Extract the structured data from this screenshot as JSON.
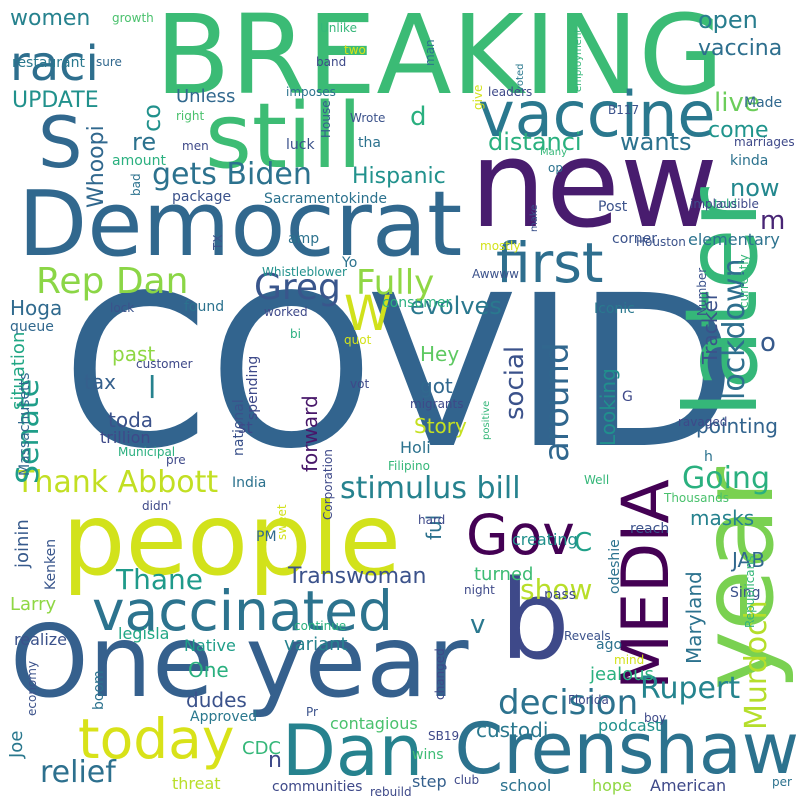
{
  "words": [
    {
      "text": "COVID",
      "color": "#32648e"
    },
    {
      "text": "BREAKING",
      "color": "#3bbb75"
    },
    {
      "text": "new",
      "color": "#481c6e"
    },
    {
      "text": "One year",
      "color": "#35608d"
    },
    {
      "text": "people",
      "color": "#d2e21b"
    },
    {
      "text": "Democrat",
      "color": "#31688e"
    },
    {
      "text": "still",
      "color": "#3dbc74"
    },
    {
      "text": "b",
      "color": "#3e4989"
    },
    {
      "text": "S",
      "color": "#31688e"
    },
    {
      "text": "year",
      "color": "#7ad151"
    },
    {
      "text": "later",
      "color": "#35b779"
    },
    {
      "text": "Crenshaw",
      "color": "#2c728e"
    },
    {
      "text": "MEDIA",
      "color": "#440154"
    },
    {
      "text": "vaccine",
      "color": "#2a788e"
    },
    {
      "text": "Dan",
      "color": "#26828e"
    },
    {
      "text": "vaccinated",
      "color": "#2c738e"
    },
    {
      "text": "today",
      "color": "#d8e219"
    },
    {
      "text": "first",
      "color": "#2e6e8e"
    },
    {
      "text": "Gov",
      "color": "#440154"
    },
    {
      "text": "raci",
      "color": "#2e6f8e"
    },
    {
      "text": "W",
      "color": "#d0e11c"
    },
    {
      "text": "Rep Dan",
      "color": "#8bd646"
    },
    {
      "text": "Greg",
      "color": "#39568c"
    },
    {
      "text": "Thank Abbott",
      "color": "#c2df23"
    },
    {
      "text": "gets Biden",
      "color": "#2c728e"
    },
    {
      "text": "Fully",
      "color": "#8fd744"
    },
    {
      "text": "around",
      "color": "#31678e"
    },
    {
      "text": "stimulus bill",
      "color": "#26828e"
    },
    {
      "text": "decision",
      "color": "#2c728e"
    },
    {
      "text": "relief",
      "color": "#2d708e"
    },
    {
      "text": "Rupert",
      "color": "#25848e"
    },
    {
      "text": "Murdoch",
      "color": "#b5de2b"
    },
    {
      "text": "Going",
      "color": "#2ab07f"
    },
    {
      "text": "lockdown",
      "color": "#2e6f8e"
    },
    {
      "text": "Senate",
      "color": "#1f9e89"
    },
    {
      "text": "Thane",
      "color": "#1f9a8a"
    },
    {
      "text": "Transwoman",
      "color": "#3b528b"
    },
    {
      "text": "show",
      "color": "#b8de29"
    },
    {
      "text": "evolves",
      "color": "#2a788e"
    },
    {
      "text": "Hispanic",
      "color": "#21918c"
    },
    {
      "text": "Whoopi",
      "color": "#31688e"
    },
    {
      "text": "social",
      "color": "#3b528b"
    },
    {
      "text": "distanci",
      "color": "#2ab07f"
    },
    {
      "text": "wants",
      "color": "#2c728e"
    },
    {
      "text": "now",
      "color": "#23888e"
    },
    {
      "text": "come",
      "color": "#1f948c"
    },
    {
      "text": "open",
      "color": "#287d8e"
    },
    {
      "text": "vaccina",
      "color": "#2e6f8e"
    },
    {
      "text": "live",
      "color": "#6ccd5a"
    },
    {
      "text": "co",
      "color": "#21918c"
    },
    {
      "text": "re",
      "color": "#2c728e"
    },
    {
      "text": "l",
      "color": "#26828e"
    },
    {
      "text": "d",
      "color": "#2ab07f"
    },
    {
      "text": "m",
      "color": "#482575"
    },
    {
      "text": "o",
      "color": "#375a8c"
    },
    {
      "text": "C",
      "color": "#1fa088"
    },
    {
      "text": "v",
      "color": "#2a788e"
    },
    {
      "text": "n",
      "color": "#3e4989"
    },
    {
      "text": "women",
      "color": "#26828e"
    },
    {
      "text": "UPDATE",
      "color": "#21918c"
    },
    {
      "text": "Unless",
      "color": "#31688e"
    },
    {
      "text": "restaurant",
      "color": "#2a788e"
    },
    {
      "text": "situation",
      "color": "#22a785"
    },
    {
      "text": "Hoga",
      "color": "#306a8e"
    },
    {
      "text": "past",
      "color": "#8fd744"
    },
    {
      "text": "tax",
      "color": "#35608d"
    },
    {
      "text": "toda",
      "color": "#3b528b"
    },
    {
      "text": "trillion",
      "color": "#3e4989"
    },
    {
      "text": "Hey",
      "color": "#5ec962"
    },
    {
      "text": "got",
      "color": "#31688e"
    },
    {
      "text": "Story",
      "color": "#c5e021"
    },
    {
      "text": "Holi",
      "color": "#2c728e"
    },
    {
      "text": "Looking",
      "color": "#218f8d"
    },
    {
      "text": "Tracker",
      "color": "#3b528b"
    },
    {
      "text": "pointing",
      "color": "#32648e"
    },
    {
      "text": "forward",
      "color": "#48186a"
    },
    {
      "text": "ful",
      "color": "#2c728e"
    },
    {
      "text": "masks",
      "color": "#26828e"
    },
    {
      "text": "JAB",
      "color": "#31688e"
    },
    {
      "text": "Maryland",
      "color": "#2c728e"
    },
    {
      "text": "turned",
      "color": "#3dbc74"
    },
    {
      "text": "Larry",
      "color": "#8fd744"
    },
    {
      "text": "joinin",
      "color": "#375a8c"
    },
    {
      "text": "One",
      "color": "#2ab07f"
    },
    {
      "text": "dudes",
      "color": "#3b528b"
    },
    {
      "text": "variant",
      "color": "#26828e"
    },
    {
      "text": "Native",
      "color": "#1f9e89"
    },
    {
      "text": "contagious",
      "color": "#4ac16d"
    },
    {
      "text": "custodi",
      "color": "#2a788e"
    },
    {
      "text": "jealous",
      "color": "#2ab07f"
    },
    {
      "text": "podcast",
      "color": "#21918c"
    },
    {
      "text": "CDC",
      "color": "#35b779"
    },
    {
      "text": "Joe",
      "color": "#2a788e"
    },
    {
      "text": "Approved",
      "color": "#2a788e"
    },
    {
      "text": "boom",
      "color": "#2c728e"
    },
    {
      "text": "realize",
      "color": "#3b528b"
    },
    {
      "text": "legisla",
      "color": "#22a785"
    },
    {
      "text": "threat",
      "color": "#b8de29"
    },
    {
      "text": "communities",
      "color": "#3e4989"
    },
    {
      "text": "wins",
      "color": "#3dbc74"
    },
    {
      "text": "step",
      "color": "#35608d"
    },
    {
      "text": "school",
      "color": "#2c728e"
    },
    {
      "text": "hope",
      "color": "#90d743"
    },
    {
      "text": "American",
      "color": "#3e4989"
    },
    {
      "text": "creating",
      "color": "#21918c"
    },
    {
      "text": "Sing",
      "color": "#3b528b"
    },
    {
      "text": "odeshie",
      "color": "#2c728e"
    },
    {
      "text": "pass",
      "color": "#3e4989"
    },
    {
      "text": "ago",
      "color": "#2c728e"
    },
    {
      "text": "Kenken",
      "color": "#39568c"
    },
    {
      "text": "Massachusetts",
      "color": "#31688e"
    },
    {
      "text": "India",
      "color": "#2c728e"
    },
    {
      "text": "PM",
      "color": "#31688e"
    },
    {
      "text": "spending",
      "color": "#3e4989"
    },
    {
      "text": "national",
      "color": "#3b528b"
    },
    {
      "text": "st",
      "color": "#3e4989"
    },
    {
      "text": "amp",
      "color": "#2c728e"
    },
    {
      "text": "Sacramentokinde",
      "color": "#2c728e"
    },
    {
      "text": "package",
      "color": "#3b528b"
    },
    {
      "text": "elementary",
      "color": "#2c728e"
    },
    {
      "text": "corner",
      "color": "#3b528b"
    },
    {
      "text": "consumer",
      "color": "#2ab07f"
    },
    {
      "text": "Iconic",
      "color": "#2a788e"
    },
    {
      "text": "Yo",
      "color": "#2c728e"
    },
    {
      "text": "Whistleblower",
      "color": "#21918c"
    },
    {
      "text": "found",
      "color": "#2c728e"
    },
    {
      "text": "queue",
      "color": "#31688e"
    },
    {
      "text": "luck",
      "color": "#3b528b"
    },
    {
      "text": "tha",
      "color": "#2c728e"
    },
    {
      "text": "kinda",
      "color": "#2c728e"
    },
    {
      "text": "told",
      "color": "#2ab07f"
    },
    {
      "text": "Post",
      "color": "#3b528b"
    },
    {
      "text": "Made",
      "color": "#31688e"
    },
    {
      "text": "amount",
      "color": "#2ab07f"
    },
    {
      "text": "bad",
      "color": "#2c728e"
    },
    {
      "text": "TX",
      "color": "#3b528b"
    },
    {
      "text": "men",
      "color": "#3e4989"
    },
    {
      "text": "Wrote",
      "color": "#3b528b"
    },
    {
      "text": "House",
      "color": "#35608d"
    },
    {
      "text": "imposes",
      "color": "#2c728e"
    },
    {
      "text": "right",
      "color": "#4ac16d"
    },
    {
      "text": "Unlike",
      "color": "#35b779"
    },
    {
      "text": "man",
      "color": "#2c728e"
    },
    {
      "text": "band",
      "color": "#3e4989"
    },
    {
      "text": "two",
      "color": "#d8e219"
    },
    {
      "text": "voted",
      "color": "#2a788e"
    },
    {
      "text": "give",
      "color": "#d2e21b"
    },
    {
      "text": "leaders",
      "color": "#3e4989"
    },
    {
      "text": "sure",
      "color": "#31688e"
    },
    {
      "text": "growth",
      "color": "#4ac16d"
    },
    {
      "text": "employment",
      "color": "#35b779"
    },
    {
      "text": "B117",
      "color": "#3b528b"
    },
    {
      "text": "marriages",
      "color": "#3e4989"
    },
    {
      "text": "op",
      "color": "#2c728e"
    },
    {
      "text": "Many",
      "color": "#35b779"
    },
    {
      "text": "implausible",
      "color": "#3e4989"
    },
    {
      "text": "make",
      "color": "#3b528b"
    },
    {
      "text": "mostly",
      "color": "#d2e21b"
    },
    {
      "text": "Houston",
      "color": "#3b528b"
    },
    {
      "text": "Awwww",
      "color": "#3b528b"
    },
    {
      "text": "currently",
      "color": "#35b779"
    },
    {
      "text": "Number",
      "color": "#3b528b"
    },
    {
      "text": "lock",
      "color": "#3b528b"
    },
    {
      "text": "worked",
      "color": "#3e4989"
    },
    {
      "text": "bi",
      "color": "#2ab07f"
    },
    {
      "text": "quot",
      "color": "#d2e21b"
    },
    {
      "text": "customer",
      "color": "#3e4989"
    },
    {
      "text": "vot",
      "color": "#3e4989"
    },
    {
      "text": "Municipal",
      "color": "#2ab07f"
    },
    {
      "text": "pre",
      "color": "#3e4989"
    },
    {
      "text": "migrants",
      "color": "#3e4989"
    },
    {
      "text": "positive",
      "color": "#35b779"
    },
    {
      "text": "G",
      "color": "#3e4989"
    },
    {
      "text": "ravaged",
      "color": "#3e4989"
    },
    {
      "text": "h",
      "color": "#2c728e"
    },
    {
      "text": "Filipino",
      "color": "#35b779"
    },
    {
      "text": "Well",
      "color": "#35b779"
    },
    {
      "text": "reach",
      "color": "#3b528b"
    },
    {
      "text": "Thousands",
      "color": "#4ac16d"
    },
    {
      "text": "Corporation",
      "color": "#3e4989"
    },
    {
      "text": "didn'",
      "color": "#3e4989"
    },
    {
      "text": "sweet",
      "color": "#d2e21b"
    },
    {
      "text": "hard",
      "color": "#3e4989"
    },
    {
      "text": "continue",
      "color": "#2ab07f"
    },
    {
      "text": "night",
      "color": "#3e4989"
    },
    {
      "text": "Republicans",
      "color": "#35b779"
    },
    {
      "text": "Reveals",
      "color": "#3b528b"
    },
    {
      "text": "mind",
      "color": "#d2e21b"
    },
    {
      "text": "changed",
      "color": "#3e4989"
    },
    {
      "text": "Florida",
      "color": "#3e4989"
    },
    {
      "text": "boy",
      "color": "#3e4989"
    },
    {
      "text": "economy",
      "color": "#3b528b"
    },
    {
      "text": "Pr",
      "color": "#3b528b"
    },
    {
      "text": "SB19",
      "color": "#3e4989"
    },
    {
      "text": "club",
      "color": "#3e4989"
    },
    {
      "text": "rebuild",
      "color": "#3e4989"
    },
    {
      "text": "per",
      "color": "#2c728e"
    }
  ]
}
